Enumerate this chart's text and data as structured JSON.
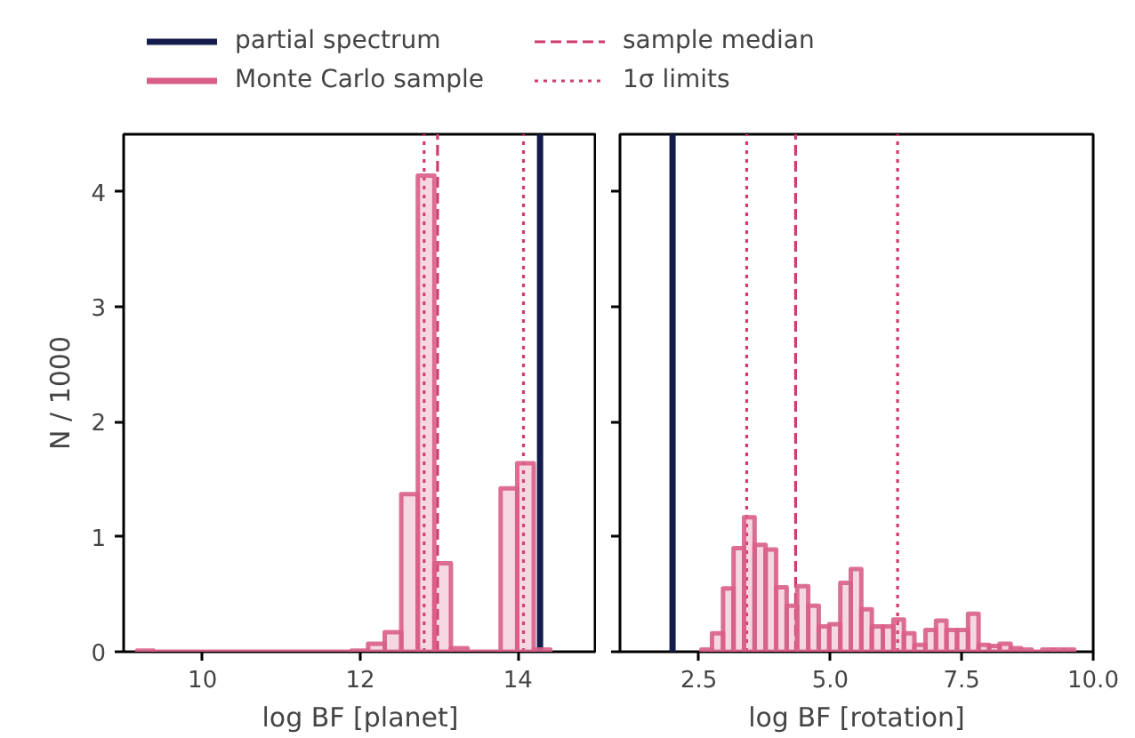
{
  "chart_data": [
    {
      "type": "histogram",
      "xlabel": "log BF [planet]",
      "ylabel": "N / 1000",
      "xlim": [
        9,
        15
      ],
      "xticks": [
        10,
        12,
        14
      ],
      "ylim": [
        0,
        4.5
      ],
      "yticks": [
        0,
        1,
        2,
        3,
        4
      ],
      "grid": false,
      "legend": "top",
      "series": [
        {
          "name": "Monte Carlo sample",
          "color": "#d95f8a",
          "values": [
            0.01,
            0,
            0.01,
            0.07,
            0.17,
            1.37,
            4.14,
            0.77,
            0.03,
            0,
            1.42,
            1.64,
            0.02
          ]
        }
      ],
      "bins": [
        9.17,
        9.38,
        11.89,
        12.1,
        12.31,
        12.52,
        12.73,
        12.94,
        13.15,
        13.36,
        13.78,
        13.99,
        14.2,
        14.41
      ],
      "ref_lines": [
        {
          "axis": "x",
          "value": 14.28,
          "label": "partial spectrum",
          "color": "#131c4a",
          "line_style": "solid"
        },
        {
          "axis": "x",
          "value": 12.98,
          "label": "sample median",
          "color": "#d2396d",
          "line_style": "dashed"
        },
        {
          "axis": "x",
          "value": 12.81,
          "label": "1σ limits",
          "color": "#d2396d",
          "line_style": "dotted"
        },
        {
          "axis": "x",
          "value": 14.07,
          "color": "#d2396d",
          "line_style": "dotted"
        }
      ]
    },
    {
      "type": "histogram",
      "xlabel": "log BF [rotation]",
      "xlim": [
        1,
        10
      ],
      "xticks": [
        2.5,
        {
          "value": 5,
          "label": "5.0"
        },
        7.5,
        {
          "value": 10,
          "label": "10.0"
        }
      ],
      "ylim": [
        0,
        4.5
      ],
      "yticks": [
        0,
        1,
        2,
        3,
        4
      ],
      "tick_labels": "x",
      "grid": false,
      "series": [
        {
          "color": "#d95f8a",
          "values": [
            0.02,
            0.16,
            0.55,
            0.9,
            1.17,
            0.93,
            0.89,
            0.56,
            0.4,
            0.57,
            0.4,
            0.22,
            0.24,
            0.6,
            0.72,
            0.37,
            0.22,
            0.22,
            0.28,
            0.16,
            0.06,
            0.19,
            0.27,
            0.19,
            0.19,
            0.33,
            0.06,
            0.05,
            0.07,
            0.03,
            0.02,
            0,
            0.02,
            0.02,
            0.02
          ]
        }
      ],
      "bins": [
        2.55,
        2.75,
        2.96,
        3.16,
        3.36,
        3.56,
        3.77,
        3.97,
        4.17,
        4.37,
        4.58,
        4.78,
        4.98,
        5.19,
        5.39,
        5.59,
        5.79,
        6.0,
        6.2,
        6.4,
        6.6,
        6.81,
        7.01,
        7.21,
        7.41,
        7.62,
        7.82,
        8.02,
        8.22,
        8.43,
        8.63,
        8.83,
        9.03,
        9.24,
        9.44,
        9.64
      ],
      "ref_lines": [
        {
          "axis": "x",
          "value": 2.0,
          "color": "#131c4a",
          "line_style": "solid"
        },
        {
          "axis": "x",
          "value": 4.34,
          "color": "#d2396d",
          "line_style": "dashed"
        },
        {
          "axis": "x",
          "value": 3.41,
          "color": "#d2396d",
          "line_style": "dotted"
        },
        {
          "axis": "x",
          "value": 6.28,
          "color": "#d2396d",
          "line_style": "dotted"
        }
      ]
    }
  ]
}
